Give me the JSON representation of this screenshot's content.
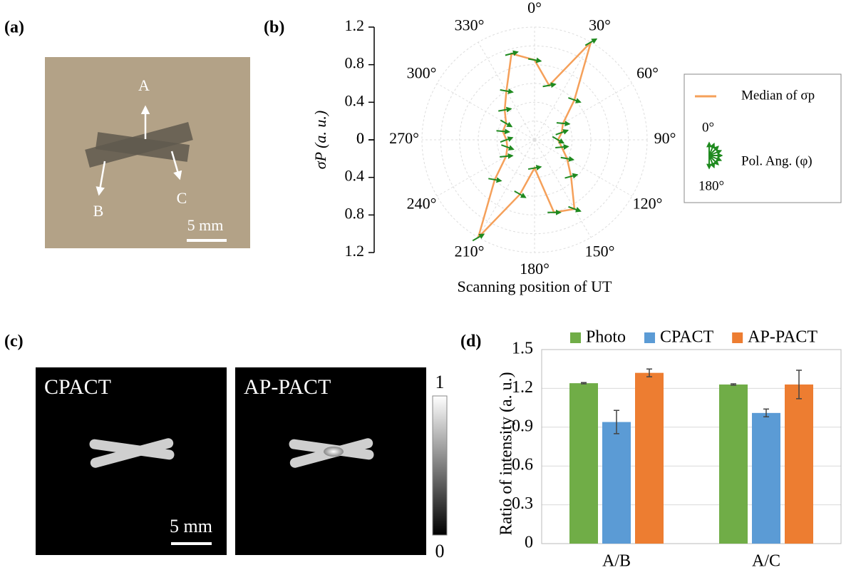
{
  "panels": [
    "(a)",
    "(b)",
    "(c)",
    "(d)"
  ],
  "photo": {
    "labels": [
      "A",
      "B",
      "C"
    ],
    "scale_bar": "5 mm"
  },
  "reconstructions": {
    "titles": [
      "CPACT",
      "AP-PACT"
    ],
    "scale_bar": "5 mm",
    "colorbar_ticks": [
      0,
      1
    ]
  },
  "chart_data": [
    {
      "type": "polar",
      "theta": [
        0,
        15,
        30,
        45,
        60,
        75,
        90,
        105,
        120,
        135,
        150,
        165,
        180,
        195,
        210,
        225,
        240,
        255,
        270,
        285,
        300,
        315,
        330,
        345
      ],
      "series": [
        {
          "name": "Median of σp",
          "color": "#f5a05a",
          "values": [
            0.85,
            0.6,
            1.2,
            0.6,
            0.35,
            0.3,
            0.25,
            0.3,
            0.4,
            0.55,
            0.85,
            0.8,
            0.3,
            0.6,
            1.2,
            0.6,
            0.35,
            0.3,
            0.3,
            0.35,
            0.35,
            0.45,
            0.6,
            0.95
          ]
        }
      ],
      "pol_angle": {
        "name": "Pol. Ang. (φ)",
        "color": "#1f8a1f",
        "range": [
          {
            "value": 0,
            "label": "0°"
          },
          {
            "value": 180,
            "label": "180°"
          }
        ],
        "values": [
          100,
          80,
          60,
          110,
          95,
          70,
          120,
          85,
          100,
          75,
          110,
          90,
          80,
          120,
          60,
          100,
          85,
          110,
          70,
          95,
          120,
          80,
          100,
          75
        ]
      },
      "rlim": [
        0,
        1.2
      ],
      "rticks": [
        0,
        0.4,
        0.8,
        1.2
      ],
      "rgrid": [
        0.2,
        0.4,
        0.6,
        0.8,
        1.0,
        1.2
      ],
      "thetaticks": [
        {
          "value": 0,
          "label": "0°"
        },
        {
          "value": 30,
          "label": "30°"
        },
        {
          "value": 60,
          "label": "60°"
        },
        {
          "value": 90,
          "label": "90°"
        },
        {
          "value": 120,
          "label": "120°"
        },
        {
          "value": 150,
          "label": "150°"
        },
        {
          "value": 180,
          "label": "180°"
        },
        {
          "value": 210,
          "label": "210°"
        },
        {
          "value": 240,
          "label": "240°"
        },
        {
          "value": 270,
          "label": "270°"
        },
        {
          "value": 300,
          "label": "300°"
        },
        {
          "value": 330,
          "label": "330°"
        }
      ],
      "ylabel": "σP (a. u.)",
      "xlabel": "Scanning position of UT"
    },
    {
      "type": "bar",
      "categories": [
        "A/B",
        "A/C"
      ],
      "series": [
        {
          "name": "Photo",
          "color": "#70ad47",
          "values": [
            1.24,
            1.23
          ],
          "errors": [
            0.005,
            0.005
          ]
        },
        {
          "name": "CPACT",
          "color": "#5b9bd5",
          "values": [
            0.94,
            1.01
          ],
          "errors": [
            0.09,
            0.03
          ]
        },
        {
          "name": "AP-PACT",
          "color": "#ed7d31",
          "values": [
            1.32,
            1.23
          ],
          "errors": [
            0.03,
            0.11
          ]
        }
      ],
      "ylim": [
        0,
        1.5
      ],
      "yticks": [
        0,
        0.3,
        0.6,
        0.9,
        1.2,
        1.5
      ],
      "ylabel": "Ratio of intensity (a. u.)",
      "grid": true
    }
  ]
}
